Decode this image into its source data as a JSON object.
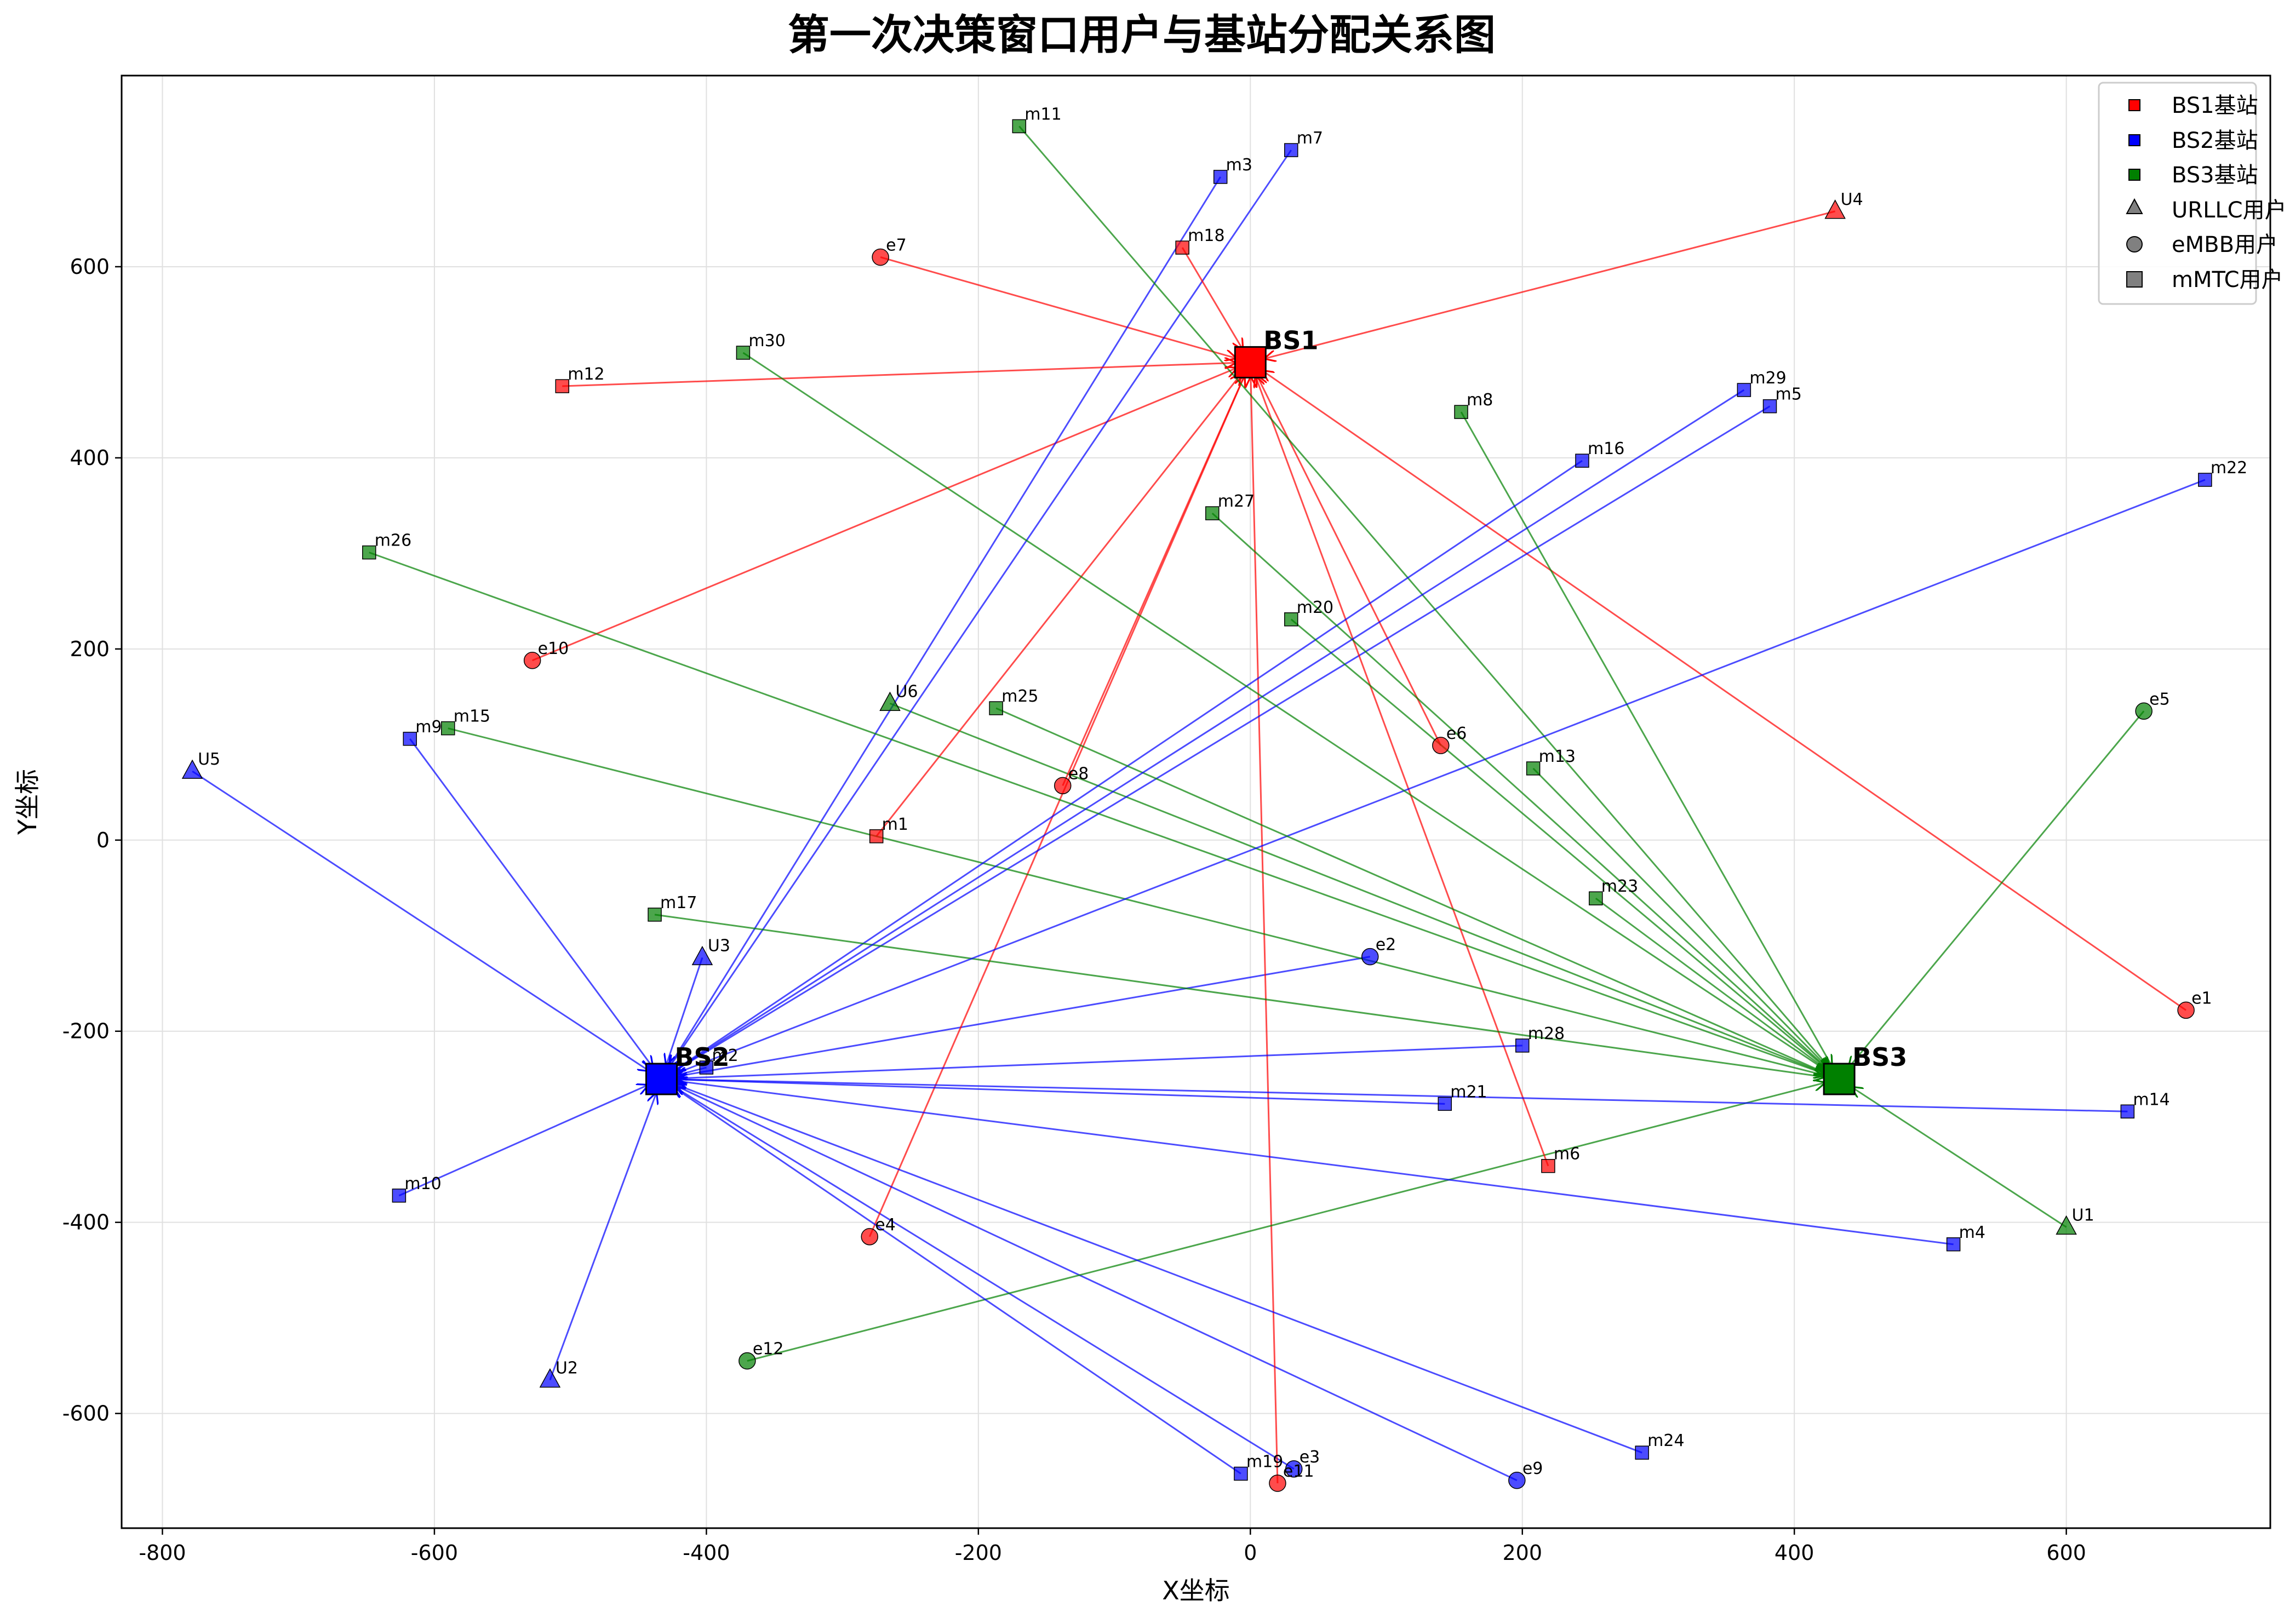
{
  "chart_data": {
    "type": "scatter",
    "title": "第一次决策窗口用户与基站分配关系图",
    "xlabel": "X坐标",
    "ylabel": "Y坐标",
    "xlim": [
      -830,
      750
    ],
    "ylim": [
      -720,
      800
    ],
    "xticks": [
      -800,
      -600,
      -400,
      -200,
      0,
      200,
      400,
      600
    ],
    "yticks": [
      -600,
      -400,
      -200,
      0,
      200,
      400,
      600
    ],
    "grid": true,
    "legend_position": "top-right",
    "legend": [
      {
        "label": "BS1基站",
        "marker": "square-small",
        "color": "#ff0000"
      },
      {
        "label": "BS2基站",
        "marker": "square-small",
        "color": "#0000ff"
      },
      {
        "label": "BS3基站",
        "marker": "square-small",
        "color": "#008000"
      },
      {
        "label": "URLLC用户",
        "marker": "triangle",
        "color": "#808080"
      },
      {
        "label": "eMBB用户",
        "marker": "circle",
        "color": "#808080"
      },
      {
        "label": "mMTC用户",
        "marker": "square",
        "color": "#808080"
      }
    ],
    "colors": {
      "BS1": "#ff0000",
      "BS2": "#0000ff",
      "BS3": "#008000"
    },
    "base_stations": [
      {
        "id": "BS1",
        "x": 0,
        "y": 500
      },
      {
        "id": "BS2",
        "x": -433,
        "y": -250
      },
      {
        "id": "BS3",
        "x": 433,
        "y": -250
      }
    ],
    "users": [
      {
        "id": "U1",
        "type": "URLLC",
        "x": 600,
        "y": -405,
        "bs": "BS3"
      },
      {
        "id": "U2",
        "type": "URLLC",
        "x": -515,
        "y": -565,
        "bs": "BS2"
      },
      {
        "id": "U3",
        "type": "URLLC",
        "x": -403,
        "y": -123,
        "bs": "BS2"
      },
      {
        "id": "U4",
        "type": "URLLC",
        "x": 430,
        "y": 658,
        "bs": "BS1"
      },
      {
        "id": "U5",
        "type": "URLLC",
        "x": -778,
        "y": 72,
        "bs": "BS2"
      },
      {
        "id": "U6",
        "type": "URLLC",
        "x": -265,
        "y": 143,
        "bs": "BS3"
      },
      {
        "id": "e1",
        "type": "eMBB",
        "x": 688,
        "y": -178,
        "bs": "BS1"
      },
      {
        "id": "e2",
        "type": "eMBB",
        "x": 88,
        "y": -122,
        "bs": "BS2"
      },
      {
        "id": "e3",
        "type": "eMBB",
        "x": 32,
        "y": -658,
        "bs": "BS2"
      },
      {
        "id": "e4",
        "type": "eMBB",
        "x": -280,
        "y": -415,
        "bs": "BS1"
      },
      {
        "id": "e5",
        "type": "eMBB",
        "x": 657,
        "y": 135,
        "bs": "BS3"
      },
      {
        "id": "e6",
        "type": "eMBB",
        "x": 140,
        "y": 99,
        "bs": "BS1"
      },
      {
        "id": "e7",
        "type": "eMBB",
        "x": -272,
        "y": 610,
        "bs": "BS1"
      },
      {
        "id": "e8",
        "type": "eMBB",
        "x": -138,
        "y": 57,
        "bs": "BS1"
      },
      {
        "id": "e9",
        "type": "eMBB",
        "x": 196,
        "y": -670,
        "bs": "BS2"
      },
      {
        "id": "e10",
        "type": "eMBB",
        "x": -528,
        "y": 188,
        "bs": "BS1"
      },
      {
        "id": "e11",
        "type": "eMBB",
        "x": 20,
        "y": -673,
        "bs": "BS1"
      },
      {
        "id": "e12",
        "type": "eMBB",
        "x": -370,
        "y": -545,
        "bs": "BS3"
      },
      {
        "id": "m1",
        "type": "mMTC",
        "x": -275,
        "y": 4,
        "bs": "BS1"
      },
      {
        "id": "m2",
        "type": "mMTC",
        "x": -400,
        "y": -238,
        "bs": "BS2"
      },
      {
        "id": "m3",
        "type": "mMTC",
        "x": -22,
        "y": 694,
        "bs": "BS2"
      },
      {
        "id": "m4",
        "type": "mMTC",
        "x": 517,
        "y": -423,
        "bs": "BS2"
      },
      {
        "id": "m5",
        "type": "mMTC",
        "x": 382,
        "y": 454,
        "bs": "BS2"
      },
      {
        "id": "m6",
        "type": "mMTC",
        "x": 219,
        "y": -341,
        "bs": "BS1"
      },
      {
        "id": "m7",
        "type": "mMTC",
        "x": 30,
        "y": 722,
        "bs": "BS2"
      },
      {
        "id": "m8",
        "type": "mMTC",
        "x": 155,
        "y": 448,
        "bs": "BS3"
      },
      {
        "id": "m9",
        "type": "mMTC",
        "x": -618,
        "y": 106,
        "bs": "BS2"
      },
      {
        "id": "m10",
        "type": "mMTC",
        "x": -626,
        "y": -372,
        "bs": "BS2"
      },
      {
        "id": "m11",
        "type": "mMTC",
        "x": -170,
        "y": 747,
        "bs": "BS3"
      },
      {
        "id": "m12",
        "type": "mMTC",
        "x": -506,
        "y": 475,
        "bs": "BS1"
      },
      {
        "id": "m13",
        "type": "mMTC",
        "x": 208,
        "y": 75,
        "bs": "BS3"
      },
      {
        "id": "m14",
        "type": "mMTC",
        "x": 645,
        "y": -284,
        "bs": "BS2"
      },
      {
        "id": "m15",
        "type": "mMTC",
        "x": -590,
        "y": 117,
        "bs": "BS3"
      },
      {
        "id": "m16",
        "type": "mMTC",
        "x": 244,
        "y": 397,
        "bs": "BS2"
      },
      {
        "id": "m17",
        "type": "mMTC",
        "x": -438,
        "y": -78,
        "bs": "BS3"
      },
      {
        "id": "m18",
        "type": "mMTC",
        "x": -50,
        "y": 620,
        "bs": "BS1"
      },
      {
        "id": "m19",
        "type": "mMTC",
        "x": -7,
        "y": -663,
        "bs": "BS2"
      },
      {
        "id": "m20",
        "type": "mMTC",
        "x": 30,
        "y": 231,
        "bs": "BS3"
      },
      {
        "id": "m21",
        "type": "mMTC",
        "x": 143,
        "y": -276,
        "bs": "BS2"
      },
      {
        "id": "m22",
        "type": "mMTC",
        "x": 702,
        "y": 377,
        "bs": "BS2"
      },
      {
        "id": "m23",
        "type": "mMTC",
        "x": 254,
        "y": -61,
        "bs": "BS3"
      },
      {
        "id": "m24",
        "type": "mMTC",
        "x": 288,
        "y": -641,
        "bs": "BS2"
      },
      {
        "id": "m25",
        "type": "mMTC",
        "x": -187,
        "y": 138,
        "bs": "BS3"
      },
      {
        "id": "m26",
        "type": "mMTC",
        "x": -648,
        "y": 301,
        "bs": "BS3"
      },
      {
        "id": "m27",
        "type": "mMTC",
        "x": -28,
        "y": 342,
        "bs": "BS3"
      },
      {
        "id": "m28",
        "type": "mMTC",
        "x": 200,
        "y": -215,
        "bs": "BS2"
      },
      {
        "id": "m29",
        "type": "mMTC",
        "x": 363,
        "y": 471,
        "bs": "BS2"
      },
      {
        "id": "m30",
        "type": "mMTC",
        "x": -373,
        "y": 510,
        "bs": "BS3"
      }
    ]
  }
}
